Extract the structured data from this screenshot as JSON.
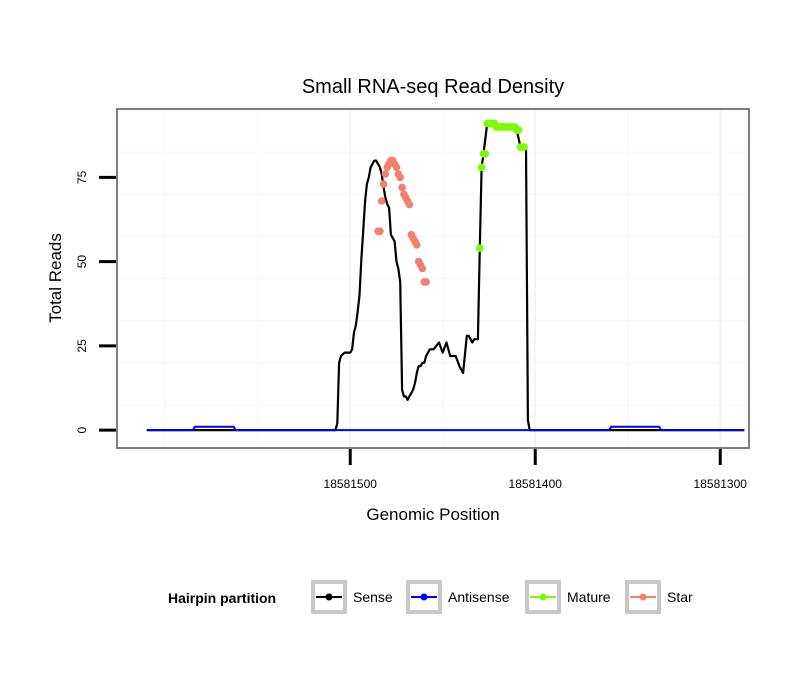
{
  "chart_data": {
    "type": "line",
    "title": "Small RNA-seq Read Density",
    "xlabel": "Genomic Position",
    "ylabel": "Total Reads",
    "xlim": [
      18581625,
      18581285
    ],
    "x_reversed": true,
    "ylim": [
      -5,
      95
    ],
    "x_ticks": [
      {
        "value": 18581500,
        "label": "18581500"
      },
      {
        "value": 18581400,
        "label": "18581400"
      },
      {
        "value": 18581300,
        "label": "18581300"
      }
    ],
    "y_ticks": [
      {
        "value": 0,
        "label": "0"
      },
      {
        "value": 25,
        "label": "25"
      },
      {
        "value": 50,
        "label": "50"
      },
      {
        "value": 75,
        "label": "75"
      }
    ],
    "grid": true,
    "legend": {
      "title": "Hairpin partition",
      "position": "bottom",
      "entries": [
        {
          "label": "Sense",
          "color": "#000000"
        },
        {
          "label": "Antisense",
          "color": "#0000FF"
        },
        {
          "label": "Mature",
          "color": "#7CFC00"
        },
        {
          "label": "Star",
          "color": "#F08070"
        }
      ]
    },
    "series": [
      {
        "name": "Sense",
        "color": "#000000",
        "style": "line",
        "x": [
          18581610,
          18581508,
          18581507,
          18581506,
          18581505,
          18581503,
          18581500,
          18581499,
          18581498,
          18581497,
          18581496,
          18581495,
          18581494,
          18581493,
          18581492,
          18581491,
          18581490,
          18581489,
          18581488,
          18581487,
          18581486,
          18581485,
          18581484,
          18581483,
          18581482,
          18581481,
          18581480,
          18581479,
          18581478,
          18581477,
          18581476,
          18581475,
          18581474,
          18581473,
          18581472,
          18581471,
          18581470,
          18581469,
          18581468,
          18581467,
          18581466,
          18581465,
          18581464,
          18581463,
          18581462,
          18581461,
          18581460,
          18581459,
          18581457,
          18581455,
          18581452,
          18581450,
          18581448,
          18581446,
          18581443,
          18581441,
          18581439,
          18581437,
          18581436,
          18581435,
          18581434,
          18581433,
          18581432,
          18581431,
          18581430,
          18581429,
          18581428,
          18581426,
          18581424,
          18581422,
          18581420,
          18581417,
          18581415,
          18581412,
          18581410,
          18581408,
          18581406,
          18581405,
          18581404,
          18581403,
          18581402,
          18581401,
          18581400,
          18581399,
          18581398,
          18581397,
          18581396,
          18581395,
          18581394,
          18581393,
          18581392,
          18581390,
          18581388,
          18581300,
          18581287
        ],
        "y": [
          0,
          0,
          2,
          20,
          22,
          23,
          23,
          24,
          29,
          31,
          35,
          40,
          51,
          59,
          68,
          73,
          75,
          78,
          79,
          80,
          80,
          79,
          78,
          76,
          72,
          69,
          67,
          66,
          58,
          57,
          56,
          50,
          48,
          44,
          12,
          10,
          10,
          9,
          10,
          11,
          12,
          14,
          17,
          19,
          19,
          20,
          20,
          22,
          24,
          24,
          26,
          23,
          26,
          22,
          22,
          19,
          17,
          28,
          28,
          27,
          26,
          27,
          27,
          27,
          54,
          78,
          82,
          91,
          91,
          90,
          90,
          90,
          90,
          90,
          89,
          84,
          84,
          84,
          3,
          0,
          0,
          0,
          0,
          0,
          0,
          0,
          0,
          0,
          0,
          0,
          0,
          0,
          0,
          0,
          0
        ]
      },
      {
        "name": "Antisense",
        "color": "#0000FF",
        "style": "line",
        "x": [
          18581610,
          18581585,
          18581584,
          18581563,
          18581562,
          18581360,
          18581359,
          18581333,
          18581332,
          18581287
        ],
        "y": [
          0,
          0,
          1,
          1,
          0,
          0,
          1,
          1,
          0,
          0
        ]
      },
      {
        "name": "Star",
        "color": "#F08070",
        "style": "points",
        "x": [
          18581485,
          18581484,
          18581483,
          18581482,
          18581481,
          18581480,
          18581479,
          18581478,
          18581477,
          18581476,
          18581475,
          18581474,
          18581473,
          18581472,
          18581471,
          18581470,
          18581469,
          18581468,
          18581467,
          18581466,
          18581465,
          18581464,
          18581463,
          18581462,
          18581461,
          18581460,
          18581459
        ],
        "y": [
          59,
          59,
          68,
          73,
          76,
          78,
          79,
          80,
          80,
          79,
          78,
          76,
          75,
          72,
          70,
          69,
          68,
          67,
          58,
          57,
          56,
          55,
          50,
          49,
          48,
          44,
          44
        ]
      },
      {
        "name": "Mature",
        "color": "#7CFC00",
        "style": "points",
        "x": [
          18581430,
          18581429,
          18581428,
          18581427,
          18581426,
          18581425,
          18581424,
          18581423,
          18581422,
          18581421,
          18581420,
          18581419,
          18581418,
          18581417,
          18581416,
          18581415,
          18581414,
          18581413,
          18581412,
          18581411,
          18581410,
          18581409,
          18581408,
          18581407,
          18581406
        ],
        "y": [
          54,
          78,
          82,
          82,
          91,
          91,
          91,
          91,
          91,
          90,
          90,
          90,
          90,
          90,
          90,
          90,
          90,
          90,
          90,
          90,
          89,
          89,
          84,
          84,
          84
        ]
      }
    ]
  }
}
